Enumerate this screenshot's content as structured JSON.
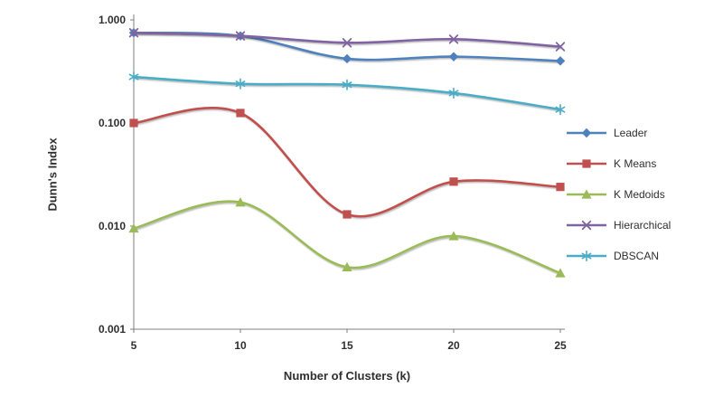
{
  "chart_data": {
    "type": "line",
    "title": "",
    "x_label": "Number of Clusters (k)",
    "y_label": "Dunn's Index",
    "x": [
      5,
      10,
      15,
      20,
      25
    ],
    "x_tick_labels": [
      "5",
      "10",
      "15",
      "20",
      "25"
    ],
    "y_scale": "log",
    "ylim": [
      0.001,
      1.0
    ],
    "y_ticks": [
      1,
      0.1,
      0.01,
      0.001
    ],
    "y_tick_labels": [
      "1.000",
      "0.100",
      "0.010",
      "0.001"
    ],
    "grid": false,
    "legend_position": "right",
    "axis_color": "#7f7f7f",
    "text_color": "#2f2f2f",
    "line_style": "smooth",
    "series": [
      {
        "name": "Leader",
        "marker": "diamond",
        "color": "#4F81BD",
        "values": [
          0.75,
          0.7,
          0.42,
          0.44,
          0.4
        ]
      },
      {
        "name": "K Means",
        "marker": "square",
        "color": "#C0504D",
        "values": [
          0.1,
          0.125,
          0.013,
          0.027,
          0.024
        ]
      },
      {
        "name": "K Medoids",
        "marker": "triangle",
        "color": "#9BBB59",
        "values": [
          0.0095,
          0.017,
          0.004,
          0.008,
          0.0035
        ]
      },
      {
        "name": "Hierarchical",
        "marker": "x",
        "color": "#8064A2",
        "values": [
          0.75,
          0.7,
          0.6,
          0.65,
          0.55
        ]
      },
      {
        "name": "DBSCAN",
        "marker": "asterisk",
        "color": "#4BACC6",
        "values": [
          0.28,
          0.24,
          0.235,
          0.195,
          0.135
        ]
      }
    ]
  }
}
